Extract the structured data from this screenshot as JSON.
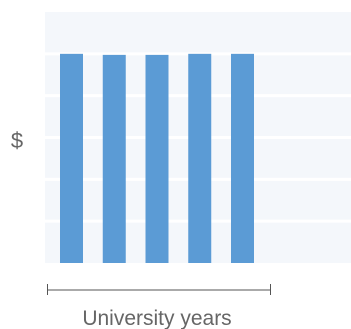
{
  "chart_data": {
    "type": "bar",
    "xlabel": "University years",
    "ylabel": "$",
    "categories": [
      "",
      "",
      "",
      "",
      ""
    ],
    "values": [
      100,
      99.5,
      99.5,
      100,
      100
    ],
    "ylim": [
      0,
      120
    ],
    "grid": true,
    "legend": "none",
    "axis_ticks": false
  },
  "colors": {
    "bar": "#5b9bd5",
    "plot_background": "#f4f7fb",
    "gridline": "#ffffff",
    "axis_line": "#555555",
    "label_text": "#666666"
  }
}
